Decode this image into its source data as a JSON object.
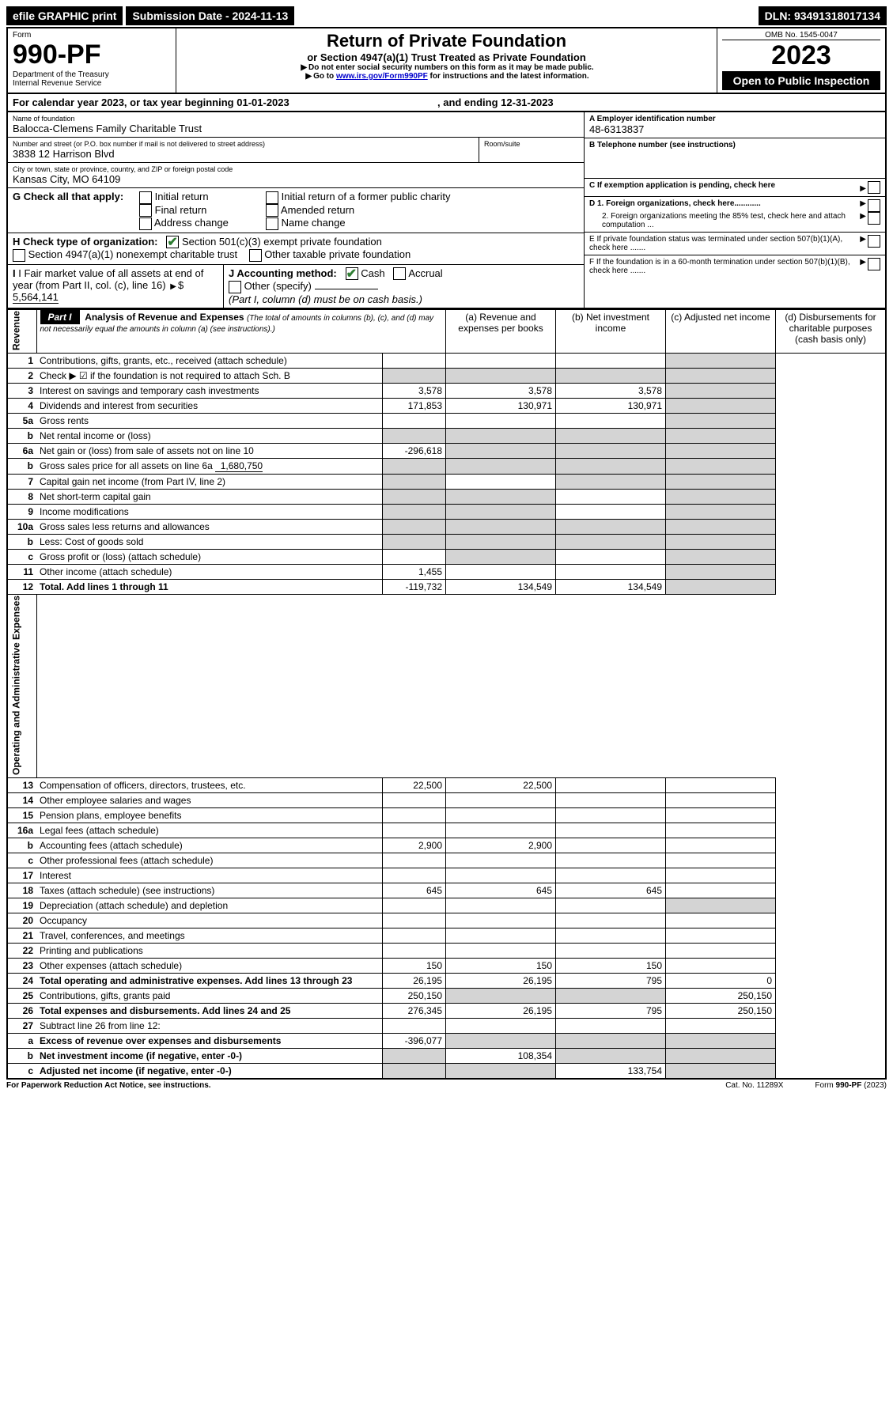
{
  "topbar": {
    "efile": "efile GRAPHIC print",
    "submission_label": "Submission Date - 2024-11-13",
    "dln": "DLN: 93491318017134"
  },
  "header": {
    "form_word": "Form",
    "form_number": "990-PF",
    "dept1": "Department of the Treasury",
    "dept2": "Internal Revenue Service",
    "title": "Return of Private Foundation",
    "subtitle": "or Section 4947(a)(1) Trust Treated as Private Foundation",
    "bullet1": "Do not enter social security numbers on this form as it may be made public.",
    "bullet2_pre": "Go to ",
    "bullet2_link": "www.irs.gov/Form990PF",
    "bullet2_post": " for instructions and the latest information.",
    "omb": "OMB No. 1545-0047",
    "year": "2023",
    "open": "Open to Public Inspection"
  },
  "calendar": {
    "prefix": "For calendar year 2023, or tax year beginning ",
    "begin": "01-01-2023",
    "mid": " , and ending ",
    "end": "12-31-2023"
  },
  "name_block": {
    "name_label": "Name of foundation",
    "name": "Balocca-Clemens Family Charitable Trust",
    "street_label": "Number and street (or P.O. box number if mail is not delivered to street address)",
    "street": "3838 12 Harrison Blvd",
    "room_label": "Room/suite",
    "city_label": "City or town, state or province, country, and ZIP or foreign postal code",
    "city": "Kansas City, MO  64109"
  },
  "right_block": {
    "A_label": "A Employer identification number",
    "A_val": "48-6313837",
    "B_label": "B Telephone number (see instructions)",
    "C_label": "C If exemption application is pending, check here",
    "D1": "D 1. Foreign organizations, check here............",
    "D2": "2. Foreign organizations meeting the 85% test, check here and attach computation ...",
    "E": "E  If private foundation status was terminated under section 507(b)(1)(A), check here .......",
    "F": "F  If the foundation is in a 60-month termination under section 507(b)(1)(B), check here ......."
  },
  "G": {
    "label": "G Check all that apply:",
    "opts": [
      "Initial return",
      "Final return",
      "Address change",
      "Initial return of a former public charity",
      "Amended return",
      "Name change"
    ]
  },
  "H": {
    "label": "H Check type of organization:",
    "opt1": "Section 501(c)(3) exempt private foundation",
    "opt2": "Section 4947(a)(1) nonexempt charitable trust",
    "opt3": "Other taxable private foundation"
  },
  "I": {
    "label": "I Fair market value of all assets at end of year (from Part II, col. (c), line 16)",
    "val": "5,564,141"
  },
  "J": {
    "label": "J Accounting method:",
    "cash": "Cash",
    "accrual": "Accrual",
    "other": "Other (specify)",
    "note": "(Part I, column (d) must be on cash basis.)"
  },
  "part1": {
    "label": "Part I",
    "title": "Analysis of Revenue and Expenses ",
    "subtitle": "(The total of amounts in columns (b), (c), and (d) may not necessarily equal the amounts in column (a) (see instructions).)",
    "col_a": "(a)   Revenue and expenses per books",
    "col_b": "(b)   Net investment income",
    "col_c": "(c)   Adjusted net income",
    "col_d": "(d)   Disbursements for charitable purposes (cash basis only)"
  },
  "sections": {
    "revenue": "Revenue",
    "expenses": "Operating and Administrative Expenses"
  },
  "rows": [
    {
      "n": "1",
      "label": "Contributions, gifts, grants, etc., received (attach schedule)",
      "a": "",
      "b": "",
      "c": "",
      "d": "",
      "shade_bcd": false,
      "shade_d": true
    },
    {
      "n": "2",
      "label": "Check ▶ ☑ if the foundation is not required to attach Sch. B",
      "a": "",
      "b": "",
      "c": "",
      "d": "",
      "shade_abcd": true
    },
    {
      "n": "3",
      "label": "Interest on savings and temporary cash investments",
      "a": "3,578",
      "b": "3,578",
      "c": "3,578",
      "d": "",
      "shade_d": true
    },
    {
      "n": "4",
      "label": "Dividends and interest from securities",
      "a": "171,853",
      "b": "130,971",
      "c": "130,971",
      "d": "",
      "shade_d": true
    },
    {
      "n": "5a",
      "label": "Gross rents",
      "a": "",
      "b": "",
      "c": "",
      "d": "",
      "shade_d": true
    },
    {
      "n": "b",
      "label": "Net rental income or (loss)",
      "a": "",
      "b": "",
      "c": "",
      "d": "",
      "inset": true,
      "shade_abcd": true
    },
    {
      "n": "6a",
      "label": "Net gain or (loss) from sale of assets not on line 10",
      "a": "-296,618",
      "b": "",
      "c": "",
      "d": "",
      "shade_bcd": true
    },
    {
      "n": "b",
      "label": "Gross sales price for all assets on line 6a",
      "inset_val": "1,680,750",
      "a": "",
      "b": "",
      "c": "",
      "d": "",
      "shade_abcd": true
    },
    {
      "n": "7",
      "label": "Capital gain net income (from Part IV, line 2)",
      "a": "",
      "b": "",
      "c": "",
      "d": "",
      "shade_a": true,
      "shade_cd": true
    },
    {
      "n": "8",
      "label": "Net short-term capital gain",
      "a": "",
      "b": "",
      "c": "",
      "d": "",
      "shade_ab": true,
      "shade_d": true
    },
    {
      "n": "9",
      "label": "Income modifications",
      "a": "",
      "b": "",
      "c": "",
      "d": "",
      "shade_ab": true,
      "shade_d": true
    },
    {
      "n": "10a",
      "label": "Gross sales less returns and allowances",
      "a": "",
      "b": "",
      "c": "",
      "d": "",
      "inset": true,
      "shade_abcd": true
    },
    {
      "n": "b",
      "label": "Less: Cost of goods sold",
      "a": "",
      "b": "",
      "c": "",
      "d": "",
      "inset": true,
      "shade_abcd": true
    },
    {
      "n": "c",
      "label": "Gross profit or (loss) (attach schedule)",
      "a": "",
      "b": "",
      "c": "",
      "d": "",
      "shade_b": true,
      "shade_d": true
    },
    {
      "n": "11",
      "label": "Other income (attach schedule)",
      "a": "1,455",
      "b": "",
      "c": "",
      "d": "",
      "shade_d": true
    },
    {
      "n": "12",
      "label": "Total. Add lines 1 through 11",
      "bold": true,
      "a": "-119,732",
      "b": "134,549",
      "c": "134,549",
      "d": "",
      "shade_d": true
    },
    {
      "n": "13",
      "label": "Compensation of officers, directors, trustees, etc.",
      "a": "22,500",
      "b": "22,500",
      "c": "",
      "d": "",
      "section": "exp"
    },
    {
      "n": "14",
      "label": "Other employee salaries and wages",
      "a": "",
      "b": "",
      "c": "",
      "d": ""
    },
    {
      "n": "15",
      "label": "Pension plans, employee benefits",
      "a": "",
      "b": "",
      "c": "",
      "d": ""
    },
    {
      "n": "16a",
      "label": "Legal fees (attach schedule)",
      "a": "",
      "b": "",
      "c": "",
      "d": ""
    },
    {
      "n": "b",
      "label": "Accounting fees (attach schedule)",
      "a": "2,900",
      "b": "2,900",
      "c": "",
      "d": ""
    },
    {
      "n": "c",
      "label": "Other professional fees (attach schedule)",
      "a": "",
      "b": "",
      "c": "",
      "d": ""
    },
    {
      "n": "17",
      "label": "Interest",
      "a": "",
      "b": "",
      "c": "",
      "d": ""
    },
    {
      "n": "18",
      "label": "Taxes (attach schedule) (see instructions)",
      "a": "645",
      "b": "645",
      "c": "645",
      "d": ""
    },
    {
      "n": "19",
      "label": "Depreciation (attach schedule) and depletion",
      "a": "",
      "b": "",
      "c": "",
      "d": "",
      "shade_d": true
    },
    {
      "n": "20",
      "label": "Occupancy",
      "a": "",
      "b": "",
      "c": "",
      "d": ""
    },
    {
      "n": "21",
      "label": "Travel, conferences, and meetings",
      "a": "",
      "b": "",
      "c": "",
      "d": ""
    },
    {
      "n": "22",
      "label": "Printing and publications",
      "a": "",
      "b": "",
      "c": "",
      "d": ""
    },
    {
      "n": "23",
      "label": "Other expenses (attach schedule)",
      "a": "150",
      "b": "150",
      "c": "150",
      "d": ""
    },
    {
      "n": "24",
      "label": "Total operating and administrative expenses. Add lines 13 through 23",
      "bold": true,
      "a": "26,195",
      "b": "26,195",
      "c": "795",
      "d": "0"
    },
    {
      "n": "25",
      "label": "Contributions, gifts, grants paid",
      "a": "250,150",
      "b": "",
      "c": "",
      "d": "250,150",
      "shade_bc": true
    },
    {
      "n": "26",
      "label": "Total expenses and disbursements. Add lines 24 and 25",
      "bold": true,
      "a": "276,345",
      "b": "26,195",
      "c": "795",
      "d": "250,150"
    },
    {
      "n": "27",
      "label": "Subtract line 26 from line 12:"
    },
    {
      "n": "a",
      "label": "Excess of revenue over expenses and disbursements",
      "bold": true,
      "a": "-396,077",
      "b": "",
      "c": "",
      "d": "",
      "shade_bcd": true
    },
    {
      "n": "b",
      "label": "Net investment income (if negative, enter -0-)",
      "bold": true,
      "a": "",
      "b": "108,354",
      "c": "",
      "d": "",
      "shade_a": true,
      "shade_cd": true
    },
    {
      "n": "c",
      "label": "Adjusted net income (if negative, enter -0-)",
      "bold": true,
      "a": "",
      "b": "",
      "c": "133,754",
      "d": "",
      "shade_ab": true,
      "shade_d": true
    }
  ],
  "footer": {
    "pra": "For Paperwork Reduction Act Notice, see instructions.",
    "cat": "Cat. No. 11289X",
    "form": "Form 990-PF (2023)"
  }
}
